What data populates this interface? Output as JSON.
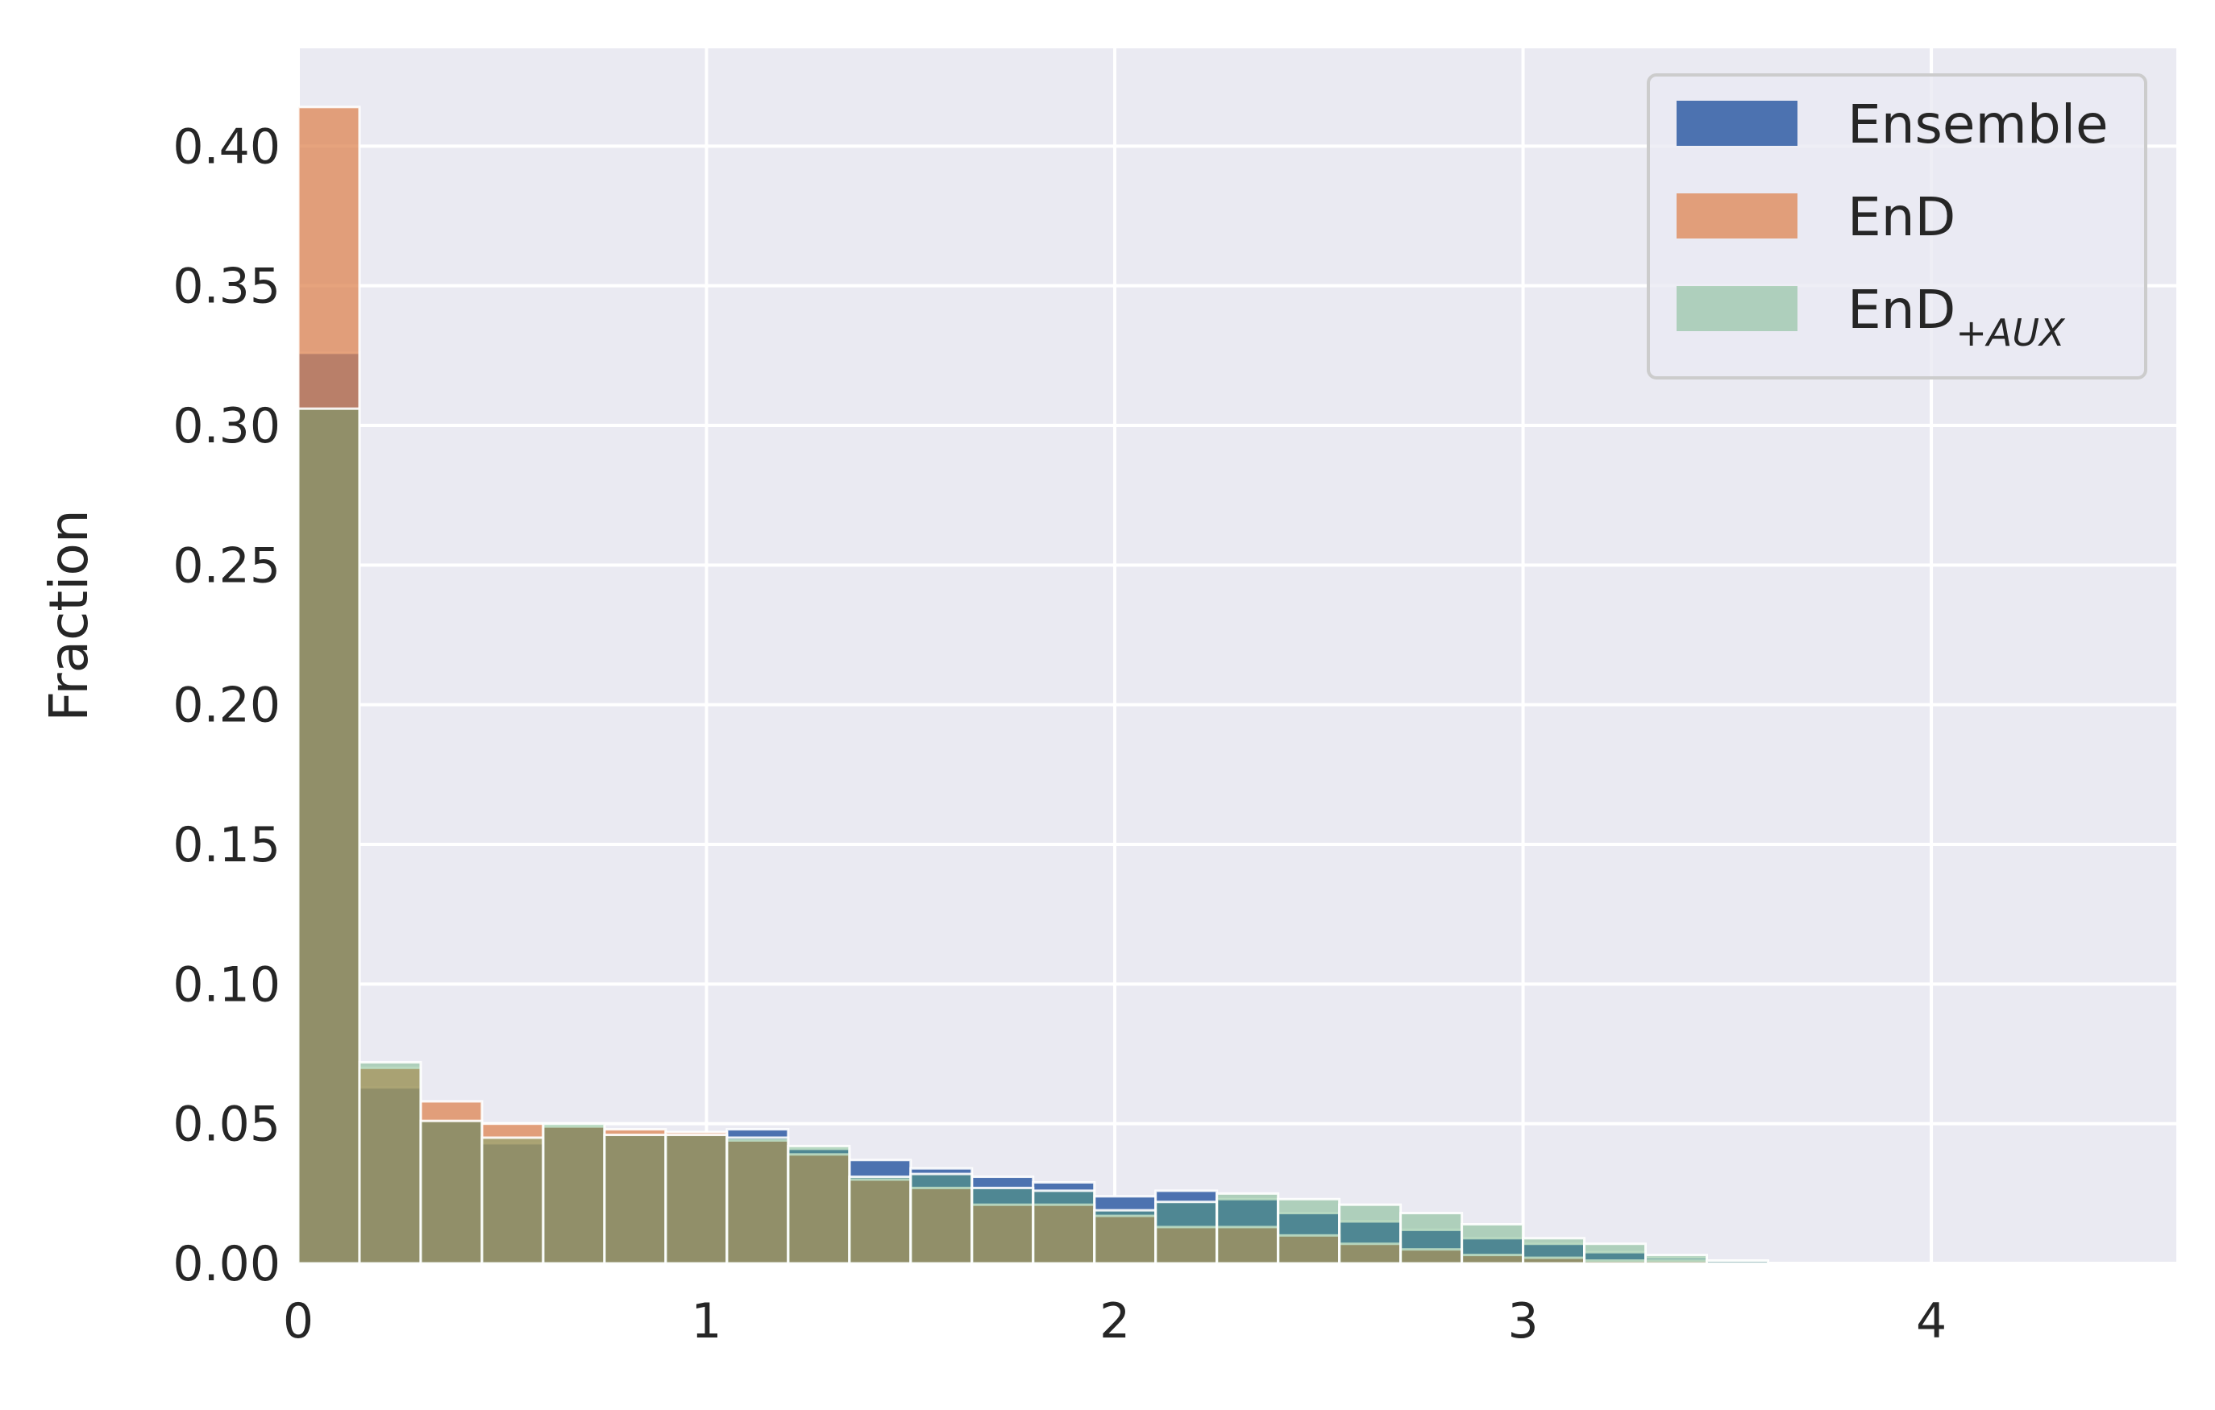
{
  "chart_data": {
    "type": "bar",
    "title": "",
    "xlabel": "",
    "ylabel": "Fraction",
    "xlim": [
      0,
      4.6
    ],
    "ylim": [
      0,
      0.435
    ],
    "x_ticks": [
      0,
      1,
      2,
      3,
      4
    ],
    "x_tick_labels": [
      "0",
      "1",
      "2",
      "3",
      "4"
    ],
    "y_ticks": [
      0,
      0.05,
      0.1,
      0.15,
      0.2,
      0.25,
      0.3,
      0.35,
      0.4
    ],
    "y_tick_labels": [
      "0.00",
      "0.05",
      "0.10",
      "0.15",
      "0.20",
      "0.25",
      "0.30",
      "0.35",
      "0.40"
    ],
    "grid": true,
    "legend_position": "top-right",
    "bin_edges": [
      0,
      0.15,
      0.3,
      0.45,
      0.6,
      0.75,
      0.9,
      1.05,
      1.2,
      1.35,
      1.5,
      1.65,
      1.8,
      1.95,
      2.1,
      2.25,
      2.4,
      2.55,
      2.7,
      2.85,
      3.0,
      3.15,
      3.3,
      3.45,
      3.6,
      3.75
    ],
    "series": [
      {
        "name": "Ensemble",
        "color": "#4c72b0",
        "opacity": 1.0,
        "values": [
          0.326,
          0.063,
          0.051,
          0.043,
          0.049,
          0.046,
          0.046,
          0.048,
          0.041,
          0.037,
          0.034,
          0.031,
          0.029,
          0.024,
          0.026,
          0.023,
          0.018,
          0.015,
          0.012,
          0.009,
          0.007,
          0.004,
          0.002,
          0.001,
          0.0
        ]
      },
      {
        "name": "EnD",
        "color": "#dd8452",
        "opacity": 0.75,
        "values": [
          0.414,
          0.07,
          0.058,
          0.05,
          0.049,
          0.048,
          0.047,
          0.044,
          0.039,
          0.03,
          0.027,
          0.021,
          0.021,
          0.017,
          0.013,
          0.013,
          0.01,
          0.007,
          0.005,
          0.003,
          0.002,
          0.001,
          0.001,
          0.0,
          0.0
        ]
      },
      {
        "name": "EnD",
        "name_subscript": "+AUX",
        "color": "#55a868",
        "opacity": 0.4,
        "values": [
          0.306,
          0.072,
          0.051,
          0.045,
          0.05,
          0.046,
          0.046,
          0.045,
          0.042,
          0.031,
          0.032,
          0.027,
          0.026,
          0.019,
          0.022,
          0.025,
          0.023,
          0.021,
          0.018,
          0.014,
          0.009,
          0.007,
          0.003,
          0.001,
          0.0
        ]
      }
    ]
  }
}
